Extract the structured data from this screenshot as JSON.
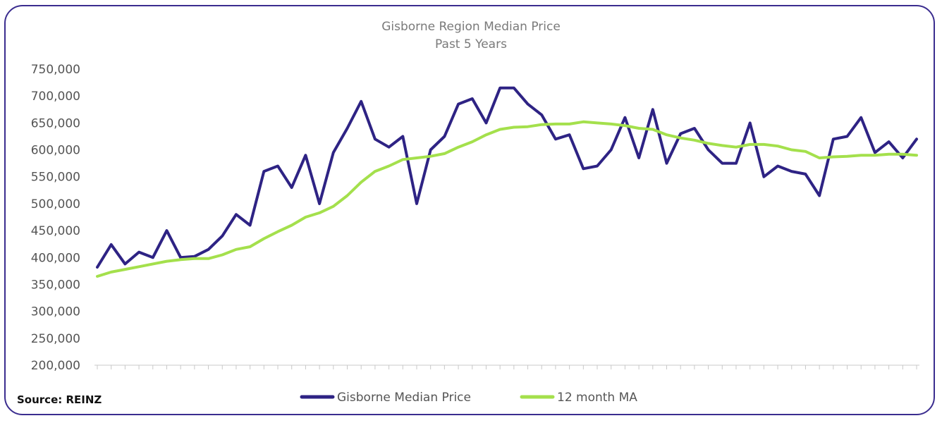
{
  "chart_data": {
    "type": "line",
    "title": "Gisborne Region Median Price",
    "subtitle": "Past 5 Years",
    "ylim": [
      200000,
      750000
    ],
    "yticks": [
      "750,000",
      "700,000",
      "650,000",
      "600,000",
      "550,000",
      "500,000",
      "450,000",
      "400,000",
      "350,000",
      "300,000",
      "250,000",
      "200,000"
    ],
    "ytick_values": [
      750000,
      700000,
      650000,
      600000,
      550000,
      500000,
      450000,
      400000,
      350000,
      300000,
      250000,
      200000
    ],
    "grid": "vertical",
    "legend_position": "bottom",
    "series": [
      {
        "name": "Gisborne Median Price",
        "color": "#2e2384",
        "values": [
          382000,
          424000,
          388000,
          410000,
          400000,
          450000,
          400000,
          402000,
          415000,
          440000,
          480000,
          460000,
          560000,
          570000,
          530000,
          590000,
          500000,
          595000,
          640000,
          690000,
          620000,
          605000,
          625000,
          500000,
          600000,
          625000,
          685000,
          695000,
          650000,
          715000,
          715000,
          685000,
          665000,
          620000,
          628000,
          565000,
          570000,
          600000,
          660000,
          585000,
          675000,
          575000,
          630000,
          640000,
          600000,
          575000,
          575000,
          650000,
          550000,
          570000,
          560000,
          555000,
          515000,
          620000,
          625000,
          660000,
          595000,
          615000,
          585000,
          620000
        ]
      },
      {
        "name": "12 month MA",
        "color": "#a4e04c",
        "values": [
          365000,
          373000,
          378000,
          383000,
          388000,
          393000,
          396000,
          398000,
          398000,
          405000,
          415000,
          420000,
          435000,
          448000,
          460000,
          475000,
          483000,
          495000,
          515000,
          540000,
          560000,
          570000,
          582000,
          585000,
          588000,
          593000,
          605000,
          615000,
          628000,
          638000,
          642000,
          643000,
          647000,
          648000,
          648000,
          652000,
          650000,
          648000,
          645000,
          640000,
          638000,
          628000,
          622000,
          618000,
          612000,
          608000,
          605000,
          610000,
          610000,
          607000,
          600000,
          597000,
          585000,
          587000,
          588000,
          590000,
          590000,
          592000,
          592000,
          590000
        ]
      }
    ]
  },
  "source": "Source: REINZ"
}
